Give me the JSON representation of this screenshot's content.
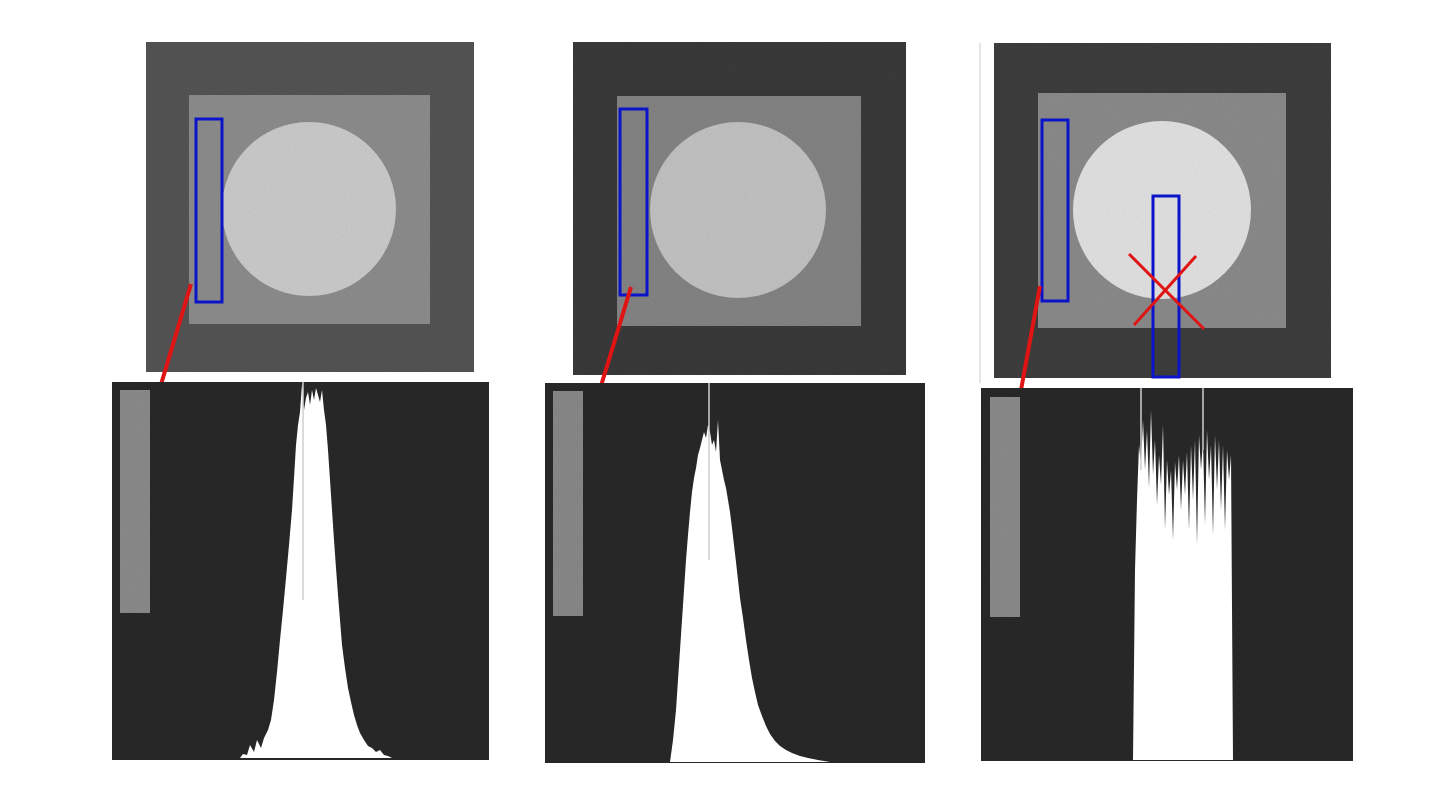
{
  "figure": {
    "panels": [
      {
        "id": "left",
        "phantom": {
          "background": "#555555",
          "square": "#8e8e8e",
          "circle": "#cdcdcd"
        },
        "roi_boxes": [
          {
            "role": "sample-roi",
            "color": "#0b14c8"
          }
        ],
        "arrow_color": "#e01414",
        "histogram": {
          "shape": "peaked",
          "background": "#272727",
          "fill": "#ffffff",
          "strip": "#8c8c8c"
        },
        "rejected": false
      },
      {
        "id": "middle",
        "phantom": {
          "background": "#3a3a3a",
          "square": "#858585",
          "circle": "#c4c4c4"
        },
        "roi_boxes": [
          {
            "role": "sample-roi",
            "color": "#0b14c8"
          }
        ],
        "arrow_color": "#e01414",
        "histogram": {
          "shape": "peaked",
          "background": "#272727",
          "fill": "#ffffff",
          "strip": "#8a8a8a"
        },
        "rejected": false
      },
      {
        "id": "right",
        "phantom": {
          "background": "#3e3e3e",
          "square": "#8c8c8c",
          "circle": "#e4e4e4"
        },
        "roi_boxes": [
          {
            "role": "sample-roi",
            "color": "#0b14c8"
          },
          {
            "role": "rejected-roi",
            "color": "#0b14c8"
          }
        ],
        "arrow_color": "#e01414",
        "cross_color": "#e01414",
        "histogram": {
          "shape": "plateau",
          "background": "#272727",
          "fill": "#ffffff",
          "strip": "#8c8c8c"
        },
        "rejected": true
      }
    ]
  }
}
